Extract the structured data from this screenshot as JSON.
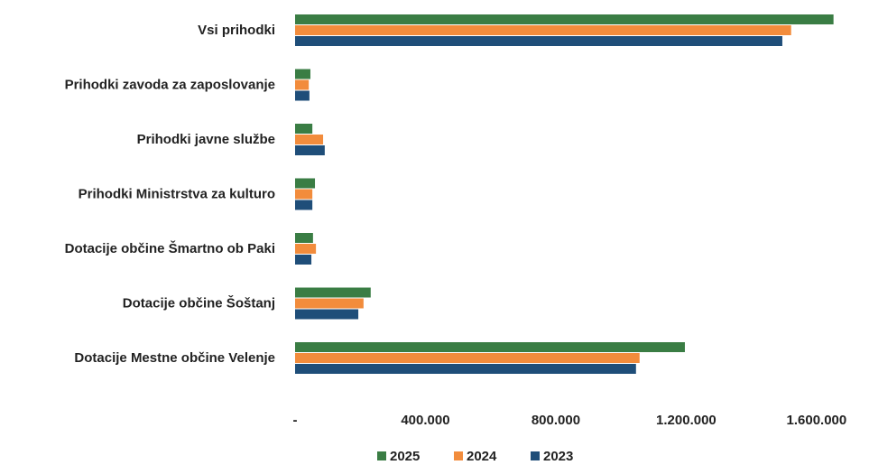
{
  "chart_data": {
    "type": "bar",
    "orientation": "horizontal",
    "categories": [
      "Vsi prihodki",
      "Prihodki zavoda za zaposlovanje",
      "Prihodki javne službe",
      "Prihodki Ministrstva za kulturo",
      "Dotacije občine Šmartno ob Paki",
      "Dotacije občine Šoštanj",
      "Dotacije Mestne občine Velenje"
    ],
    "series": [
      {
        "name": "2025",
        "color": "#3a7d44",
        "values": [
          1652000,
          47000,
          53000,
          61000,
          55000,
          232000,
          1196000
        ]
      },
      {
        "name": "2024",
        "color": "#f28c3c",
        "values": [
          1522000,
          42000,
          86000,
          53000,
          64000,
          210000,
          1057000
        ]
      },
      {
        "name": "2023",
        "color": "#1f4e79",
        "values": [
          1495000,
          44000,
          91000,
          53000,
          50000,
          194000,
          1046000
        ]
      }
    ],
    "xlim": [
      0,
      1700000
    ],
    "xticks": [
      {
        "value": 0,
        "label": "-"
      },
      {
        "value": 400000,
        "label": "400.000"
      },
      {
        "value": 800000,
        "label": "800.000"
      },
      {
        "value": 1200000,
        "label": "1.200.000"
      },
      {
        "value": 1600000,
        "label": "1.600.000"
      }
    ],
    "legend": "bottom",
    "grid": false
  }
}
